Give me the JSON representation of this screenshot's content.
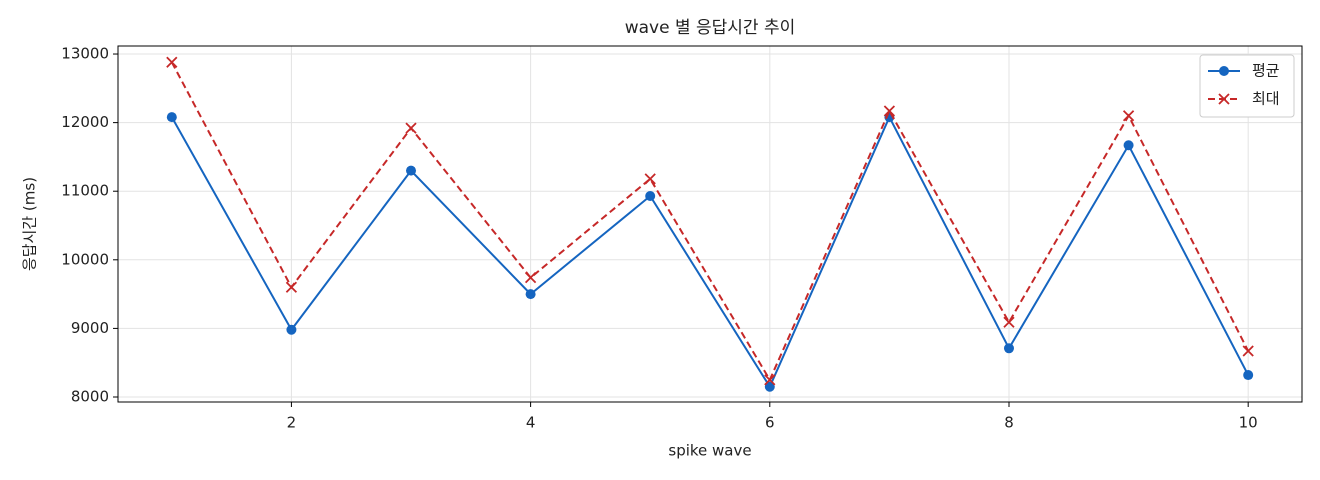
{
  "chart_data": {
    "type": "line",
    "title": "wave 별 응답시간 추이",
    "x_label": "spike wave",
    "y_label": "응답시간 (ms)",
    "x": [
      1,
      2,
      3,
      4,
      5,
      6,
      7,
      8,
      9,
      10
    ],
    "series": [
      {
        "name": "평균",
        "color": "#1565c0",
        "marker": "o",
        "linestyle": "solid",
        "values": [
          12080,
          8980,
          11300,
          9500,
          10930,
          8150,
          12080,
          8710,
          11670,
          8320
        ]
      },
      {
        "name": "최대",
        "color": "#c62828",
        "marker": "x",
        "linestyle": "dashed",
        "values": [
          12880,
          9600,
          11920,
          9740,
          11180,
          8250,
          12170,
          9090,
          12100,
          8670
        ]
      }
    ],
    "xlim": [
      0.55,
      10.45
    ],
    "ylim": [
      7927,
      13117
    ],
    "xticks": [
      2,
      4,
      6,
      8,
      10
    ],
    "yticks": [
      8000,
      9000,
      10000,
      11000,
      12000,
      13000
    ],
    "grid": true,
    "legend": "upper right"
  }
}
